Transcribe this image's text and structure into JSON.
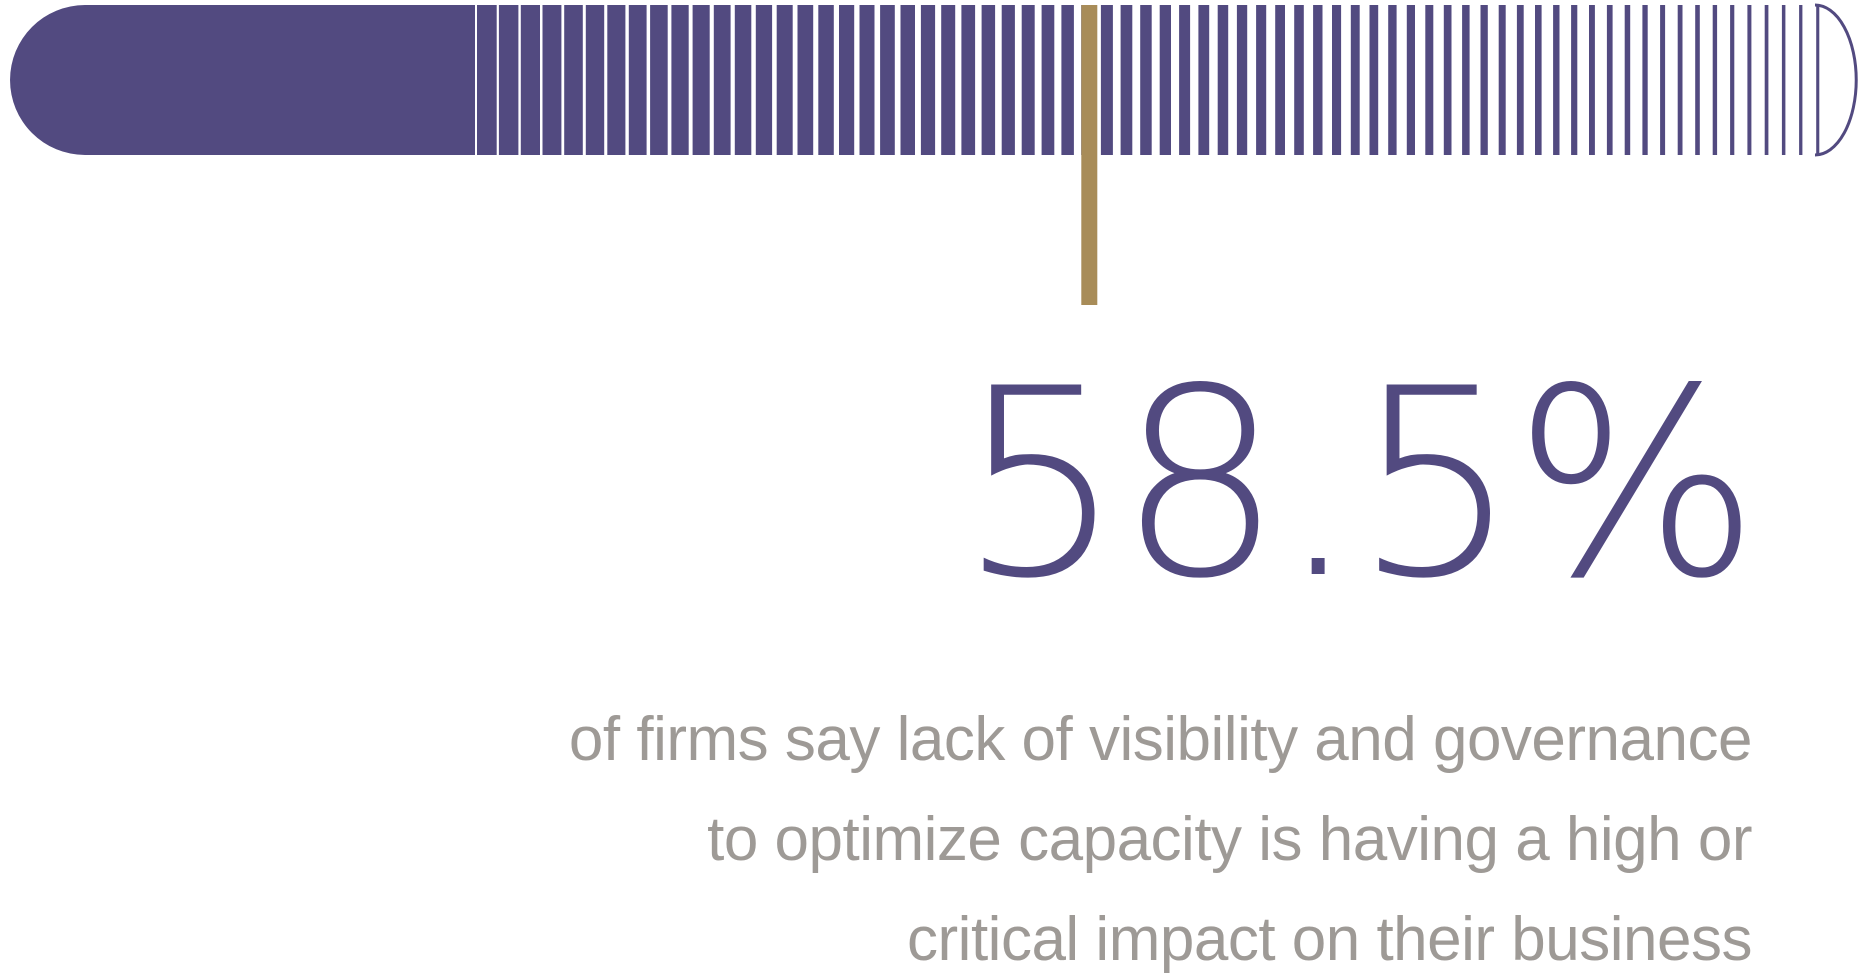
{
  "stat": {
    "value": "58.5%",
    "fraction": 0.585
  },
  "caption": {
    "lines": [
      "of firms say lack of visibility and governance",
      "to optimize capacity is having a high or",
      "critical impact on their business"
    ]
  },
  "colors": {
    "bar": "#524a80",
    "marker": "#a88c58",
    "stat_text": "#524a80",
    "caption_text": "#9e9a96"
  }
}
